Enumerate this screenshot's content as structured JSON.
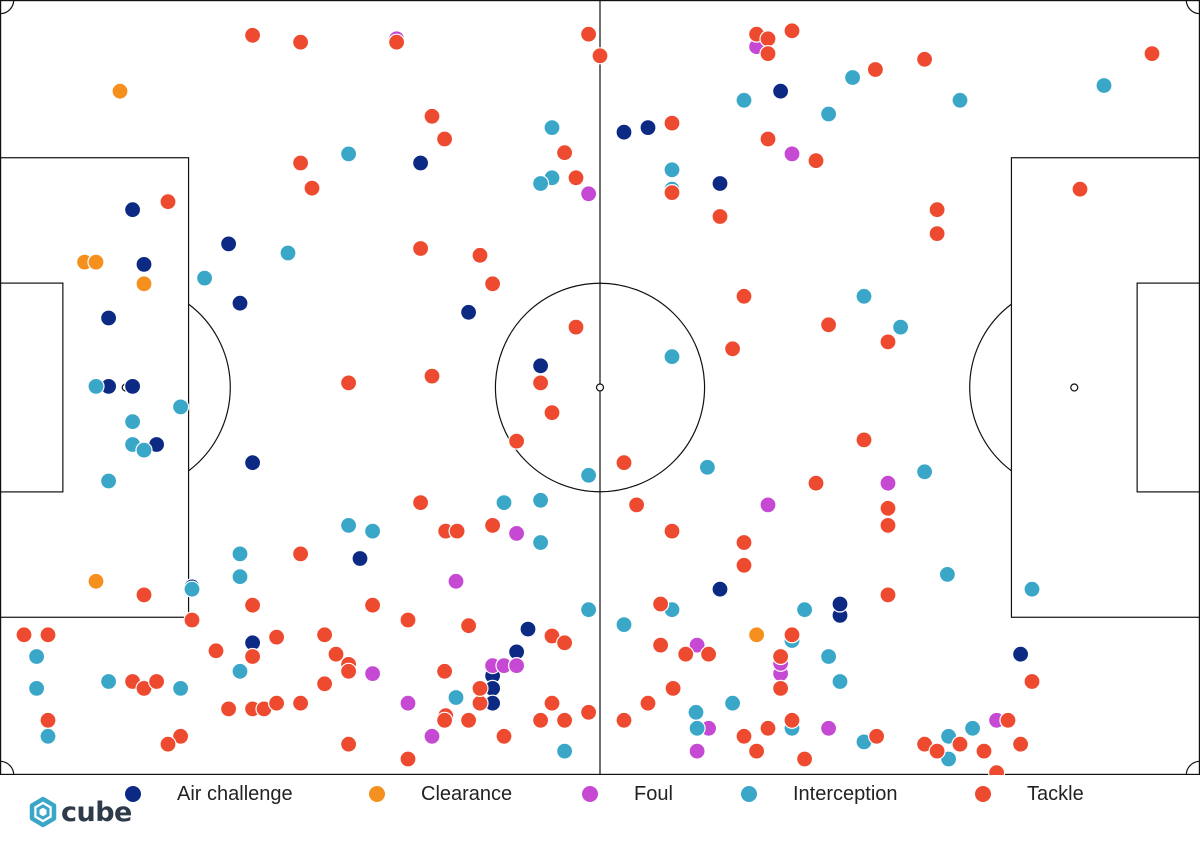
{
  "chart_data": {
    "type": "scatter",
    "title": "",
    "xlabel": "",
    "ylabel": "",
    "xlim": [
      0,
      105
    ],
    "ylim": [
      0,
      68
    ],
    "grid": false,
    "legend_position": "bottom",
    "series": [
      {
        "name": "Air challenge",
        "color": "#0c2a84",
        "points": [
          [
            11.6,
            49.6
          ],
          [
            12.6,
            44.8
          ],
          [
            9.5,
            40.1
          ],
          [
            9.5,
            34.1
          ],
          [
            11.6,
            34.1
          ],
          [
            13.7,
            29.0
          ],
          [
            20.0,
            46.6
          ],
          [
            21.0,
            41.4
          ],
          [
            22.1,
            27.4
          ],
          [
            16.8,
            16.5
          ],
          [
            22.1,
            11.6
          ],
          [
            36.8,
            53.7
          ],
          [
            41.0,
            40.6
          ],
          [
            31.5,
            19.0
          ],
          [
            47.3,
            35.9
          ],
          [
            46.2,
            12.8
          ],
          [
            45.2,
            10.8
          ],
          [
            43.1,
            8.7
          ],
          [
            43.1,
            7.6
          ],
          [
            43.1,
            6.3
          ],
          [
            54.6,
            56.4
          ],
          [
            56.7,
            56.8
          ],
          [
            63.0,
            51.9
          ],
          [
            63.0,
            16.3
          ],
          [
            68.3,
            60.0
          ],
          [
            73.5,
            14.0
          ],
          [
            73.5,
            15.0
          ],
          [
            77.7,
            21.8
          ],
          [
            89.3,
            10.6
          ]
        ]
      },
      {
        "name": "Clearance",
        "color": "#f5901e",
        "points": [
          [
            10.5,
            60.0
          ],
          [
            7.4,
            45.0
          ],
          [
            8.4,
            45.0
          ],
          [
            12.6,
            43.1
          ],
          [
            8.4,
            17.0
          ],
          [
            66.2,
            12.3
          ]
        ]
      },
      {
        "name": "Foul",
        "color": "#c549d2",
        "points": [
          [
            34.7,
            64.6
          ],
          [
            66.2,
            63.9
          ],
          [
            69.3,
            54.5
          ],
          [
            51.5,
            51.0
          ],
          [
            45.2,
            21.2
          ],
          [
            39.9,
            17.0
          ],
          [
            43.1,
            9.6
          ],
          [
            44.1,
            9.6
          ],
          [
            45.2,
            9.6
          ],
          [
            32.6,
            8.9
          ],
          [
            35.7,
            6.3
          ],
          [
            37.8,
            3.4
          ],
          [
            61.0,
            11.4
          ],
          [
            68.3,
            8.9
          ],
          [
            68.3,
            9.8
          ],
          [
            72.5,
            4.1
          ],
          [
            62.0,
            4.1
          ],
          [
            61.0,
            2.1
          ],
          [
            77.7,
            25.6
          ],
          [
            67.2,
            23.7
          ],
          [
            87.2,
            4.8
          ]
        ]
      },
      {
        "name": "Interception",
        "color": "#3aa7c8",
        "points": [
          [
            30.5,
            54.5
          ],
          [
            48.3,
            56.8
          ],
          [
            48.3,
            52.4
          ],
          [
            47.3,
            51.9
          ],
          [
            58.8,
            53.1
          ],
          [
            58.8,
            51.4
          ],
          [
            65.1,
            59.2
          ],
          [
            72.5,
            58.0
          ],
          [
            74.6,
            61.2
          ],
          [
            84.0,
            59.2
          ],
          [
            96.6,
            60.5
          ],
          [
            75.6,
            42.0
          ],
          [
            78.8,
            39.3
          ],
          [
            58.8,
            36.7
          ],
          [
            25.2,
            45.8
          ],
          [
            17.9,
            43.6
          ],
          [
            8.4,
            34.1
          ],
          [
            15.8,
            32.3
          ],
          [
            11.6,
            31.0
          ],
          [
            11.6,
            29.0
          ],
          [
            12.6,
            28.5
          ],
          [
            9.5,
            25.8
          ],
          [
            61.9,
            27.0
          ],
          [
            51.5,
            26.3
          ],
          [
            80.9,
            26.6
          ],
          [
            44.1,
            23.9
          ],
          [
            47.3,
            24.1
          ],
          [
            47.3,
            20.4
          ],
          [
            30.5,
            21.9
          ],
          [
            32.6,
            21.4
          ],
          [
            21.0,
            19.4
          ],
          [
            21.0,
            17.4
          ],
          [
            16.8,
            16.3
          ],
          [
            51.5,
            14.5
          ],
          [
            54.6,
            13.2
          ],
          [
            58.8,
            14.5
          ],
          [
            70.4,
            14.5
          ],
          [
            82.9,
            17.6
          ],
          [
            90.3,
            16.3
          ],
          [
            3.2,
            10.4
          ],
          [
            3.2,
            7.6
          ],
          [
            9.5,
            8.2
          ],
          [
            15.8,
            7.6
          ],
          [
            21.0,
            9.1
          ],
          [
            39.9,
            6.8
          ],
          [
            4.2,
            3.4
          ],
          [
            49.4,
            2.1
          ],
          [
            60.9,
            5.5
          ],
          [
            64.1,
            6.3
          ],
          [
            61.0,
            4.1
          ],
          [
            69.3,
            4.1
          ],
          [
            72.5,
            10.4
          ],
          [
            73.5,
            8.2
          ],
          [
            75.6,
            2.9
          ],
          [
            83.0,
            3.4
          ],
          [
            85.1,
            4.1
          ],
          [
            83.0,
            1.4
          ],
          [
            69.3,
            11.8
          ]
        ]
      },
      {
        "name": "Tackle",
        "color": "#ee4a2f",
        "points": [
          [
            22.1,
            64.9
          ],
          [
            26.3,
            64.3
          ],
          [
            34.7,
            64.3
          ],
          [
            37.8,
            57.8
          ],
          [
            38.9,
            55.8
          ],
          [
            26.3,
            53.7
          ],
          [
            27.3,
            51.5
          ],
          [
            49.4,
            54.6
          ],
          [
            50.4,
            52.4
          ],
          [
            14.7,
            50.3
          ],
          [
            36.8,
            46.2
          ],
          [
            42.0,
            45.6
          ],
          [
            43.1,
            43.1
          ],
          [
            50.4,
            39.3
          ],
          [
            30.5,
            34.4
          ],
          [
            37.8,
            35.0
          ],
          [
            47.3,
            34.4
          ],
          [
            48.3,
            31.8
          ],
          [
            45.2,
            29.3
          ],
          [
            66.2,
            65.0
          ],
          [
            67.2,
            64.6
          ],
          [
            69.3,
            65.3
          ],
          [
            67.2,
            63.3
          ],
          [
            58.8,
            57.2
          ],
          [
            67.2,
            55.8
          ],
          [
            71.4,
            53.9
          ],
          [
            76.6,
            61.9
          ],
          [
            80.9,
            62.8
          ],
          [
            100.8,
            63.3
          ],
          [
            58.8,
            51.1
          ],
          [
            63.0,
            49.0
          ],
          [
            82.0,
            49.6
          ],
          [
            82.0,
            47.5
          ],
          [
            94.5,
            51.4
          ],
          [
            65.1,
            42.0
          ],
          [
            72.5,
            39.5
          ],
          [
            77.7,
            38.0
          ],
          [
            64.1,
            37.4
          ],
          [
            54.6,
            27.4
          ],
          [
            75.6,
            29.4
          ],
          [
            71.4,
            25.6
          ],
          [
            36.8,
            23.9
          ],
          [
            39.0,
            21.4
          ],
          [
            40.0,
            21.4
          ],
          [
            43.1,
            21.9
          ],
          [
            26.3,
            19.4
          ],
          [
            12.6,
            15.8
          ],
          [
            22.1,
            14.9
          ],
          [
            32.6,
            14.9
          ],
          [
            35.7,
            13.6
          ],
          [
            41.0,
            13.1
          ],
          [
            55.7,
            23.7
          ],
          [
            58.8,
            21.4
          ],
          [
            65.1,
            20.4
          ],
          [
            65.1,
            18.4
          ],
          [
            57.8,
            15.0
          ],
          [
            77.7,
            23.4
          ],
          [
            77.7,
            21.9
          ],
          [
            77.7,
            15.8
          ],
          [
            2.1,
            12.3
          ],
          [
            4.2,
            12.3
          ],
          [
            16.8,
            13.6
          ],
          [
            18.9,
            10.9
          ],
          [
            22.1,
            10.4
          ],
          [
            24.2,
            12.1
          ],
          [
            28.4,
            12.3
          ],
          [
            29.4,
            10.6
          ],
          [
            30.5,
            9.7
          ],
          [
            28.4,
            8.0
          ],
          [
            30.5,
            9.1
          ],
          [
            11.6,
            8.2
          ],
          [
            12.6,
            7.6
          ],
          [
            13.7,
            8.2
          ],
          [
            20.0,
            5.8
          ],
          [
            22.1,
            5.8
          ],
          [
            23.1,
            5.8
          ],
          [
            24.2,
            6.3
          ],
          [
            26.3,
            6.3
          ],
          [
            4.2,
            4.8
          ],
          [
            15.8,
            3.4
          ],
          [
            14.7,
            2.7
          ],
          [
            30.5,
            2.7
          ],
          [
            35.7,
            1.4
          ],
          [
            38.9,
            9.1
          ],
          [
            39.0,
            5.2
          ],
          [
            38.9,
            4.8
          ],
          [
            41.0,
            4.8
          ],
          [
            42.0,
            6.3
          ],
          [
            47.3,
            4.8
          ],
          [
            48.3,
            6.3
          ],
          [
            49.4,
            4.8
          ],
          [
            51.5,
            5.5
          ],
          [
            42.0,
            7.6
          ],
          [
            44.1,
            3.4
          ],
          [
            48.3,
            12.2
          ],
          [
            49.4,
            11.6
          ],
          [
            57.8,
            11.4
          ],
          [
            60.0,
            10.6
          ],
          [
            62.0,
            10.6
          ],
          [
            58.9,
            7.6
          ],
          [
            54.6,
            4.8
          ],
          [
            56.7,
            6.3
          ],
          [
            65.1,
            3.4
          ],
          [
            66.2,
            2.1
          ],
          [
            67.2,
            4.1
          ],
          [
            69.3,
            4.8
          ],
          [
            70.4,
            1.4
          ],
          [
            68.3,
            7.6
          ],
          [
            69.3,
            12.3
          ],
          [
            68.3,
            10.4
          ],
          [
            76.7,
            3.4
          ],
          [
            80.9,
            2.7
          ],
          [
            82.0,
            2.1
          ],
          [
            84.0,
            2.7
          ],
          [
            86.1,
            2.1
          ],
          [
            88.2,
            4.8
          ],
          [
            89.3,
            2.7
          ],
          [
            87.2,
            0.2
          ],
          [
            88.2,
            4.8
          ],
          [
            90.3,
            8.2
          ],
          [
            51.5,
            65.0
          ],
          [
            52.5,
            63.1
          ]
        ]
      }
    ]
  },
  "pitch": {
    "length_m": 105,
    "width_m": 68,
    "line_color": "#111111",
    "background": "#ffffff"
  },
  "legend": {
    "items": [
      {
        "label": "Air challenge",
        "color": "#0c2a84"
      },
      {
        "label": "Clearance",
        "color": "#f5901e"
      },
      {
        "label": "Foul",
        "color": "#c549d2"
      },
      {
        "label": "Interception",
        "color": "#3aa7c8"
      },
      {
        "label": "Tackle",
        "color": "#ee4a2f"
      }
    ]
  },
  "branding": {
    "logo_text": "cube",
    "logo_icon": "cube-logo-icon",
    "logo_colors": [
      "#3aa7c8",
      "#2f3b4a"
    ]
  }
}
